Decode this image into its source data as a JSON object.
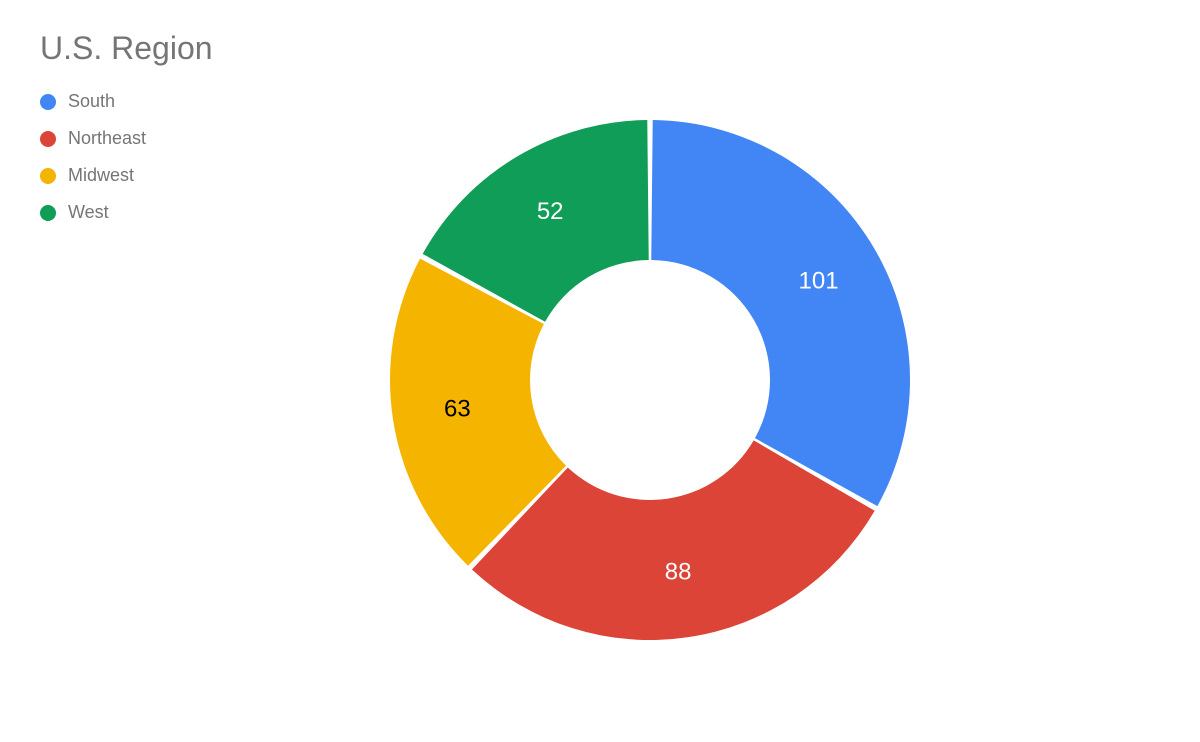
{
  "chart": {
    "type": "donut",
    "title": "U.S. Region",
    "title_color": "#757575",
    "title_fontsize": 32,
    "background_color": "#ffffff",
    "legend_label_color": "#757575",
    "legend_label_fontsize": 18,
    "outer_radius": 260,
    "inner_radius": 120,
    "slice_gap_deg": 1.2,
    "value_label_fontsize": 24,
    "value_label_radius": 195,
    "series": [
      {
        "label": "South",
        "value": 101,
        "color": "#4285f4",
        "value_text_color": "#ffffff"
      },
      {
        "label": "Northeast",
        "value": 88,
        "color": "#db4437",
        "value_text_color": "#ffffff"
      },
      {
        "label": "Midwest",
        "value": 63,
        "color": "#f4b400",
        "value_text_color": "#000000"
      },
      {
        "label": "West",
        "value": 52,
        "color": "#0f9d58",
        "value_text_color": "#ffffff"
      }
    ]
  }
}
